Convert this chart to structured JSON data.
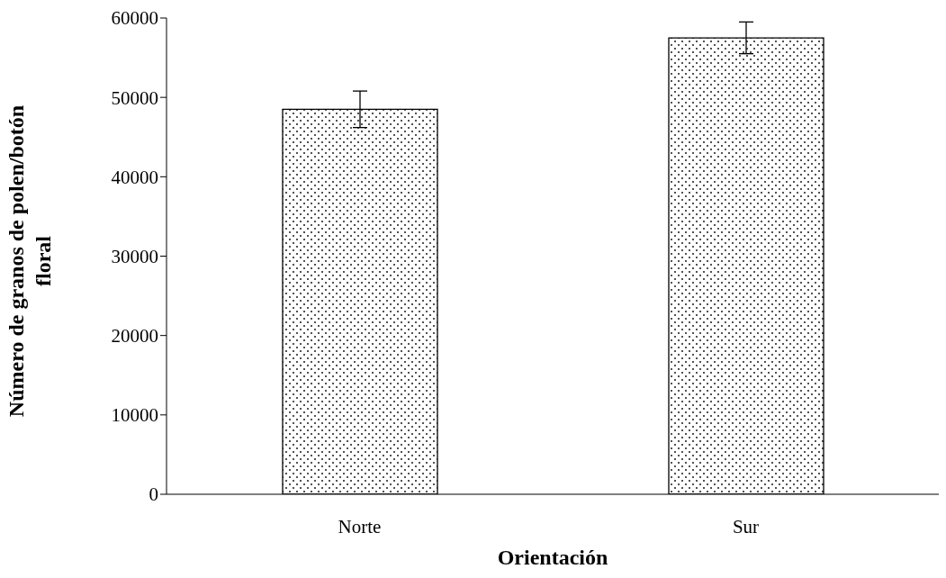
{
  "chart_data": {
    "type": "bar",
    "xlabel": "Orientación",
    "ylabel": "Número de granos de polen/botón floral",
    "categories": [
      "Norte",
      "Sur"
    ],
    "values": [
      48500,
      57500
    ],
    "errors": [
      2300,
      2000
    ],
    "color": "#000000",
    "ylim": [
      0,
      60000
    ],
    "yticks": [
      0,
      10000,
      20000,
      30000,
      40000,
      50000,
      60000
    ],
    "grid": false,
    "legend": false
  }
}
